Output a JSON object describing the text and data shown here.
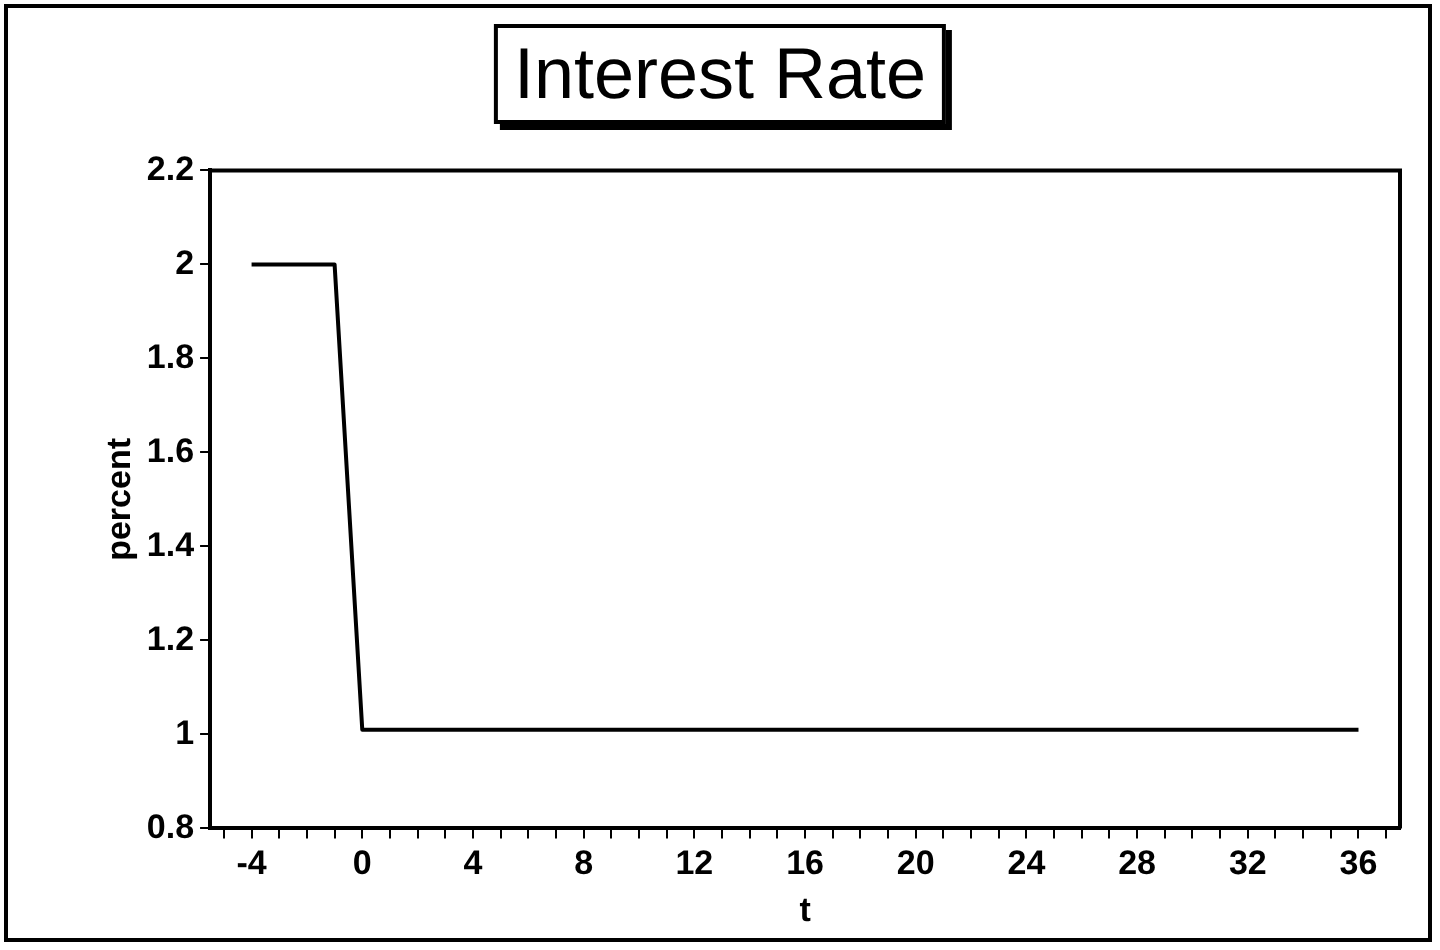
{
  "chart_data": {
    "type": "line",
    "title": "Interest Rate",
    "xlabel": "t",
    "ylabel": "percent",
    "series": [
      {
        "color": "#000000",
        "x": [
          -4,
          -1,
          0,
          36
        ],
        "values": [
          2,
          2,
          1.01,
          1.01
        ]
      }
    ],
    "xlim": [
      -5.5,
      37.5
    ],
    "xticks": [
      {
        "value": -5,
        "label": null
      },
      -4,
      {
        "value": -3,
        "label": null
      },
      {
        "value": -2,
        "label": null
      },
      {
        "value": -1,
        "label": null
      },
      0,
      {
        "value": 1,
        "label": null
      },
      {
        "value": 2,
        "label": null
      },
      {
        "value": 3,
        "label": null
      },
      4,
      {
        "value": 5,
        "label": null
      },
      {
        "value": 6,
        "label": null
      },
      {
        "value": 7,
        "label": null
      },
      8,
      {
        "value": 9,
        "label": null
      },
      {
        "value": 10,
        "label": null
      },
      {
        "value": 11,
        "label": null
      },
      12,
      {
        "value": 13,
        "label": null
      },
      {
        "value": 14,
        "label": null
      },
      {
        "value": 15,
        "label": null
      },
      16,
      {
        "value": 17,
        "label": null
      },
      {
        "value": 18,
        "label": null
      },
      {
        "value": 19,
        "label": null
      },
      20,
      {
        "value": 21,
        "label": null
      },
      {
        "value": 22,
        "label": null
      },
      {
        "value": 23,
        "label": null
      },
      24,
      {
        "value": 25,
        "label": null
      },
      {
        "value": 26,
        "label": null
      },
      {
        "value": 27,
        "label": null
      },
      28,
      {
        "value": 29,
        "label": null
      },
      {
        "value": 30,
        "label": null
      },
      {
        "value": 31,
        "label": null
      },
      32,
      {
        "value": 33,
        "label": null
      },
      {
        "value": 34,
        "label": null
      },
      {
        "value": 35,
        "label": null
      },
      36,
      {
        "value": 37,
        "label": null
      }
    ],
    "ylim": [
      0.8,
      2.2
    ],
    "yticks": [
      0.8,
      1,
      1.2,
      1.4,
      1.6,
      1.8,
      2,
      2.2
    ],
    "grid": false,
    "legend": false,
    "marker": "none",
    "line_style": "solid"
  }
}
